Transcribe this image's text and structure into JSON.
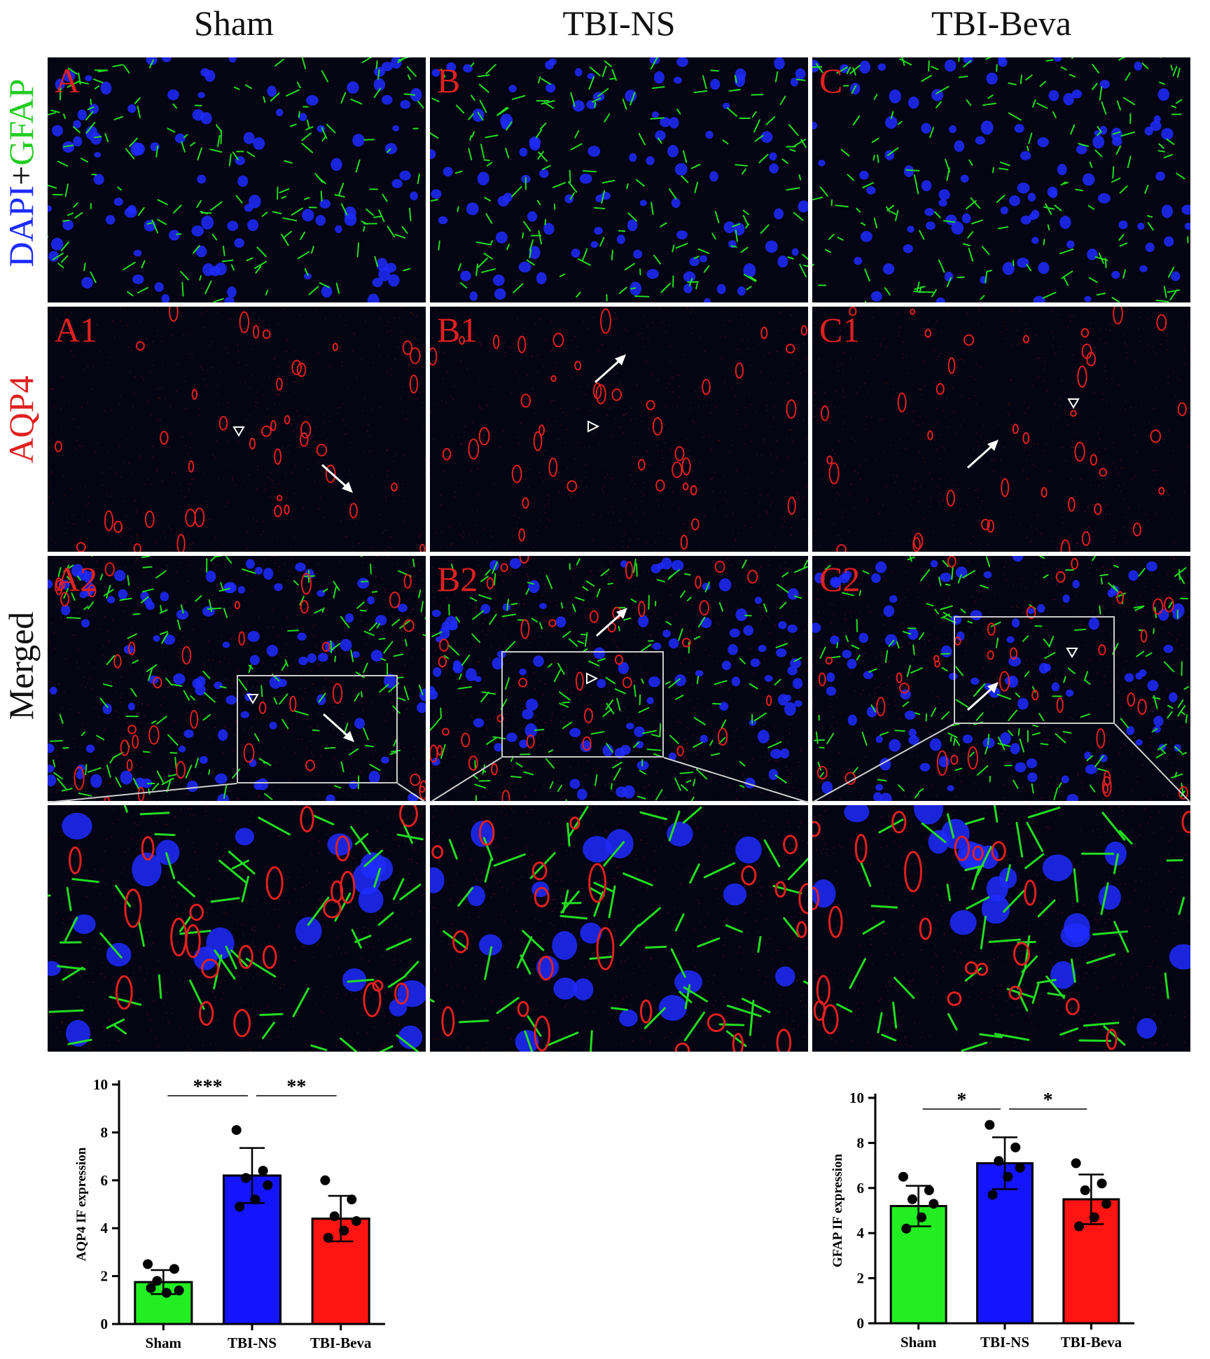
{
  "figure": {
    "columns": [
      "Sham",
      "TBI-NS",
      "TBI-Beva"
    ],
    "row_labels": {
      "dapi_gfap": {
        "part1": "DAPI",
        "part2": "+",
        "part3": "GFAP"
      },
      "aqp4": "AQP4",
      "merged": "Merged"
    },
    "panels": {
      "dapi": [
        "A",
        "B",
        "C"
      ],
      "aqp4": [
        "A1",
        "B1",
        "C1"
      ],
      "merged": [
        "A2",
        "B2",
        "C2"
      ]
    },
    "colors": {
      "dapi": "#1e2bff",
      "gfap": "#22dd22",
      "aqp4": "#e02020",
      "background": "#040412"
    }
  },
  "chart_data": [
    {
      "type": "bar",
      "ylabel": "AQP4 IF expression",
      "categories": [
        "Sham",
        "TBI-NS",
        "TBI-Beva"
      ],
      "values": [
        1.75,
        6.2,
        4.4
      ],
      "error": [
        0.5,
        1.15,
        0.95
      ],
      "points": [
        [
          2.5,
          2.3,
          1.8,
          1.4,
          1.3,
          1.5
        ],
        [
          8.1,
          6.4,
          6.1,
          5.8,
          5.2,
          4.9
        ],
        [
          6.0,
          5.2,
          4.5,
          4.3,
          3.9,
          3.6
        ]
      ],
      "ylim": [
        0,
        10
      ],
      "yticks": [
        "0",
        "2",
        "4",
        "6",
        "8",
        "10"
      ],
      "bar_colors": [
        "#22ee22",
        "#1414ff",
        "#ff1414"
      ],
      "significance": [
        {
          "from": 0,
          "to": 1,
          "label": "***"
        },
        {
          "from": 1,
          "to": 2,
          "label": "**"
        }
      ]
    },
    {
      "type": "bar",
      "ylabel": "GFAP IF expression",
      "categories": [
        "Sham",
        "TBI-NS",
        "TBI-Beva"
      ],
      "values": [
        5.2,
        7.1,
        5.5
      ],
      "error": [
        0.9,
        1.15,
        1.1
      ],
      "points": [
        [
          6.5,
          5.9,
          5.5,
          5.3,
          4.7,
          4.2
        ],
        [
          8.8,
          7.8,
          7.2,
          6.9,
          6.5,
          5.7
        ],
        [
          7.1,
          6.2,
          5.9,
          5.3,
          4.7,
          4.3
        ]
      ],
      "ylim": [
        0,
        10
      ],
      "yticks": [
        "0",
        "2",
        "4",
        "6",
        "8",
        "10"
      ],
      "bar_colors": [
        "#22ee22",
        "#1414ff",
        "#ff1414"
      ],
      "significance": [
        {
          "from": 0,
          "to": 1,
          "label": "*"
        },
        {
          "from": 1,
          "to": 2,
          "label": "*"
        }
      ]
    }
  ]
}
